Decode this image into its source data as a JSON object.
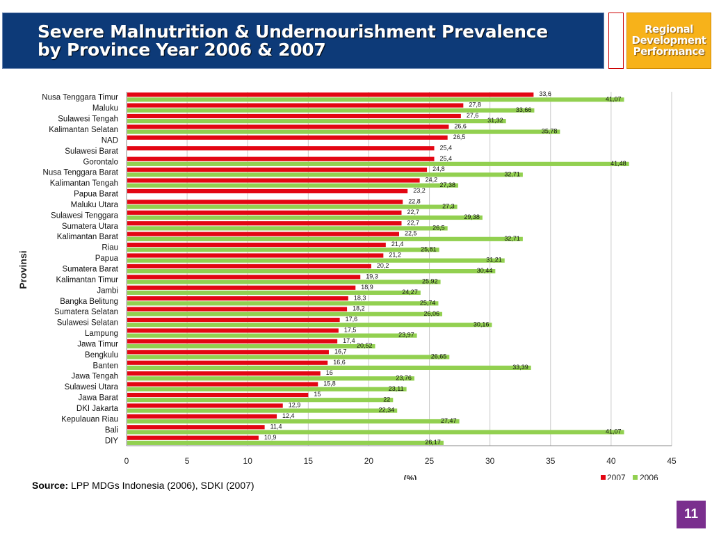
{
  "header": {
    "title_line1": "Severe Malnutrition & Undernourishment Prevalence",
    "title_line2": "by Province Year 2006 & 2007",
    "badge_line1": "Regional",
    "badge_line2": "Development",
    "badge_line3": "Performance"
  },
  "footer": {
    "source_label": "Source:",
    "source_text": "LPP MDGs Indonesia (2006), SDKI (2007)",
    "page_number": "11"
  },
  "colors": {
    "series_2007": "#e30613",
    "series_2006": "#92d050",
    "header_bg": "#0d3a78",
    "badge_bg": "#f7b21a",
    "page_bg": "#7a2f8e"
  },
  "chart_data": {
    "type": "bar",
    "orientation": "horizontal",
    "ylabel": "Provinsi",
    "xlabel": "(%)",
    "xlim": [
      0,
      45
    ],
    "xticks": [
      "0",
      "5",
      "10",
      "15",
      "20",
      "25",
      "30",
      "35",
      "40",
      "45"
    ],
    "grid": "vertical",
    "legend_position": "bottom-right",
    "categories": [
      "Nusa Tenggara Timur",
      "Maluku",
      "Sulawesi Tengah",
      "Kalimantan Selatan",
      "NAD",
      "Sulawesi Barat",
      "Gorontalo",
      "Nusa Tenggara Barat",
      "Kalimantan Tengah",
      "Papua Barat",
      "Maluku Utara",
      "Sulawesi Tenggara",
      "Sumatera Utara",
      "Kalimantan Barat",
      "Riau",
      "Papua",
      "Sumatera Barat",
      "Kalimantan Timur",
      "Jambi",
      "Bangka Belitung",
      "Sumatera Selatan",
      "Sulawesi Selatan",
      "Lampung",
      "Jawa Timur",
      "Bengkulu",
      "Banten",
      "Jawa Tengah",
      "Sulawesi Utara",
      "Jawa Barat",
      "DKI Jakarta",
      "Kepulauan Riau",
      "Bali",
      "DIY"
    ],
    "series": [
      {
        "name": "2007",
        "values": [
          33.6,
          27.8,
          27.6,
          26.6,
          26.5,
          25.4,
          25.4,
          24.8,
          24.2,
          23.2,
          22.8,
          22.7,
          22.7,
          22.5,
          21.4,
          21.2,
          20.2,
          19.3,
          18.9,
          18.3,
          18.2,
          17.6,
          17.5,
          17.4,
          16.7,
          16.6,
          16,
          15.8,
          15,
          12.9,
          12.4,
          11.4,
          10.9
        ],
        "labels": [
          "33,6",
          "27,8",
          "27,6",
          "26,6",
          "26,5",
          "25,4",
          "25,4",
          "24,8",
          "24,2",
          "23,2",
          "22,8",
          "22,7",
          "22,7",
          "22,5",
          "21,4",
          "21,2",
          "20,2",
          "19,3",
          "18,9",
          "18,3",
          "18,2",
          "17,6",
          "17,5",
          "17,4",
          "16,7",
          "16,6",
          "16",
          "15,8",
          "15",
          "12,9",
          "12,4",
          "11,4",
          "10,9"
        ]
      },
      {
        "name": "2006",
        "values": [
          41.07,
          33.66,
          31.32,
          35.78,
          null,
          null,
          41.48,
          32.71,
          27.38,
          null,
          27.3,
          29.38,
          26.5,
          32.71,
          25.81,
          31.21,
          30.44,
          25.92,
          24.27,
          25.74,
          26.06,
          30.16,
          23.97,
          20.52,
          26.65,
          33.39,
          23.76,
          23.11,
          22,
          22.34,
          27.47,
          41.07,
          26.17
        ],
        "labels": [
          "41,07",
          "33,66",
          "31,32",
          "35,78",
          null,
          null,
          "41,48",
          "32,71",
          "27,38",
          null,
          "27,3",
          "29,38",
          "26,5",
          "32,71",
          "25,81",
          "31,21",
          "30,44",
          "25,92",
          "24,27",
          "25,74",
          "26,06",
          "30,16",
          "23,97",
          "20,52",
          "26,65",
          "33,39",
          "23,76",
          "23,11",
          "22",
          "22,34",
          "27,47",
          "41,07",
          "26,17"
        ]
      }
    ]
  }
}
